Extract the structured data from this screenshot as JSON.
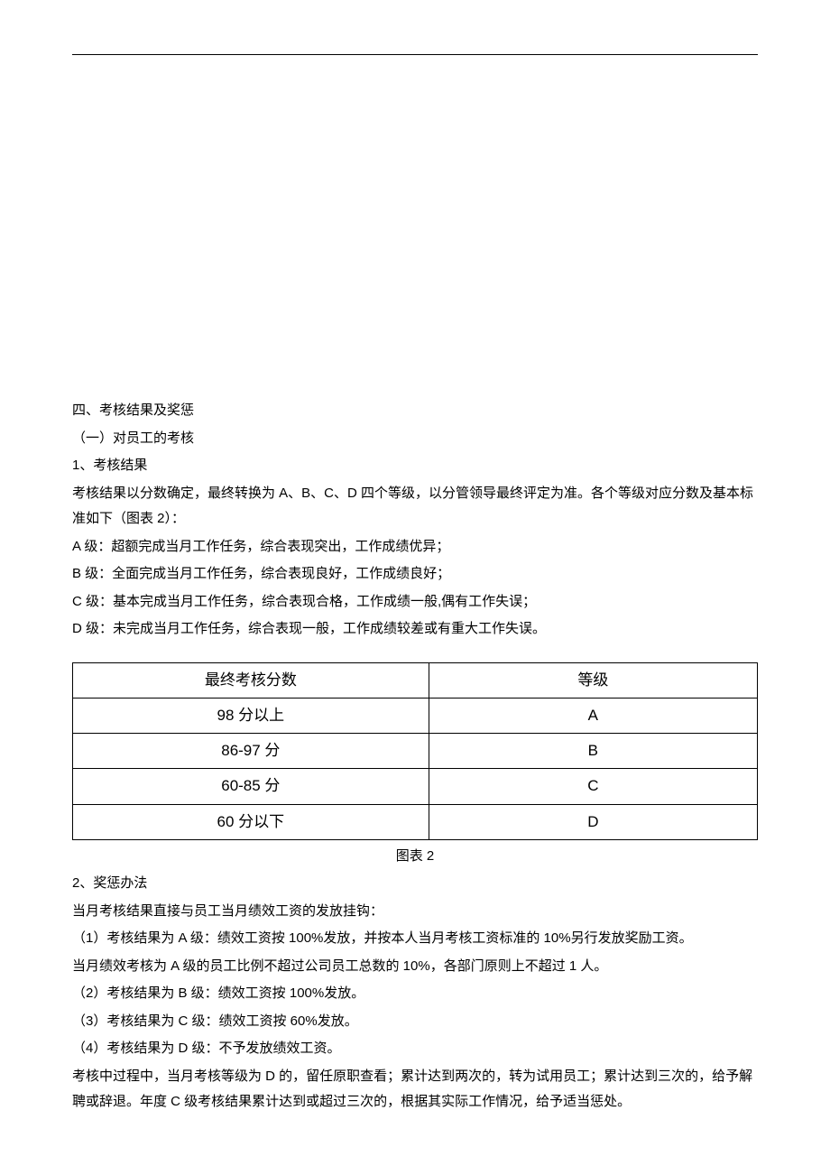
{
  "section": {
    "heading": "四、考核结果及奖惩",
    "sub_heading": "（一）对员工的考核",
    "part1": {
      "num_heading": "1、考核结果",
      "intro": "考核结果以分数确定，最终转换为 A、B、C、D 四个等级，以分管领导最终评定为准。各个等级对应分数及基本标准如下（图表 2）：",
      "grade_a": "A 级：超额完成当月工作任务，综合表现突出，工作成绩优异；",
      "grade_b": "B 级：全面完成当月工作任务，综合表现良好，工作成绩良好；",
      "grade_c": "C 级：基本完成当月工作任务，综合表现合格，工作成绩一般,偶有工作失误；",
      "grade_d": "D 级：未完成当月工作任务，综合表现一般，工作成绩较差或有重大工作失误。"
    },
    "table": {
      "header_score": "最终考核分数",
      "header_grade": "等级",
      "rows": [
        {
          "score": "98 分以上",
          "grade": "A"
        },
        {
          "score": "86-97 分",
          "grade": "B"
        },
        {
          "score": "60-85 分",
          "grade": "C"
        },
        {
          "score": "60 分以下",
          "grade": "D"
        }
      ],
      "caption": "图表 2",
      "col1_width": "52%",
      "col2_width": "48%"
    },
    "part2": {
      "num_heading": "2、奖惩办法",
      "intro": "当月考核结果直接与员工当月绩效工资的发放挂钩：",
      "rule1_line1": "（1）考核结果为 A 级：绩效工资按 100%发放，并按本人当月考核工资标准的 10%另行发放奖励工资。",
      "rule1_line2": "当月绩效考核为 A 级的员工比例不超过公司员工总数的 10%，各部门原则上不超过 1 人。",
      "rule2": "（2）考核结果为 B 级：绩效工资按 100%发放。",
      "rule3": "（3）考核结果为 C 级：绩效工资按 60%发放。",
      "rule4": "（4）考核结果为 D 级：不予发放绩效工资。",
      "note": "考核中过程中，当月考核等级为 D 的，留任原职查看；累计达到两次的，转为试用员工；累计达到三次的，给予解聘或辞退。年度 C 级考核结果累计达到或超过三次的，根据其实际工作情况，给予适当惩处。"
    }
  }
}
